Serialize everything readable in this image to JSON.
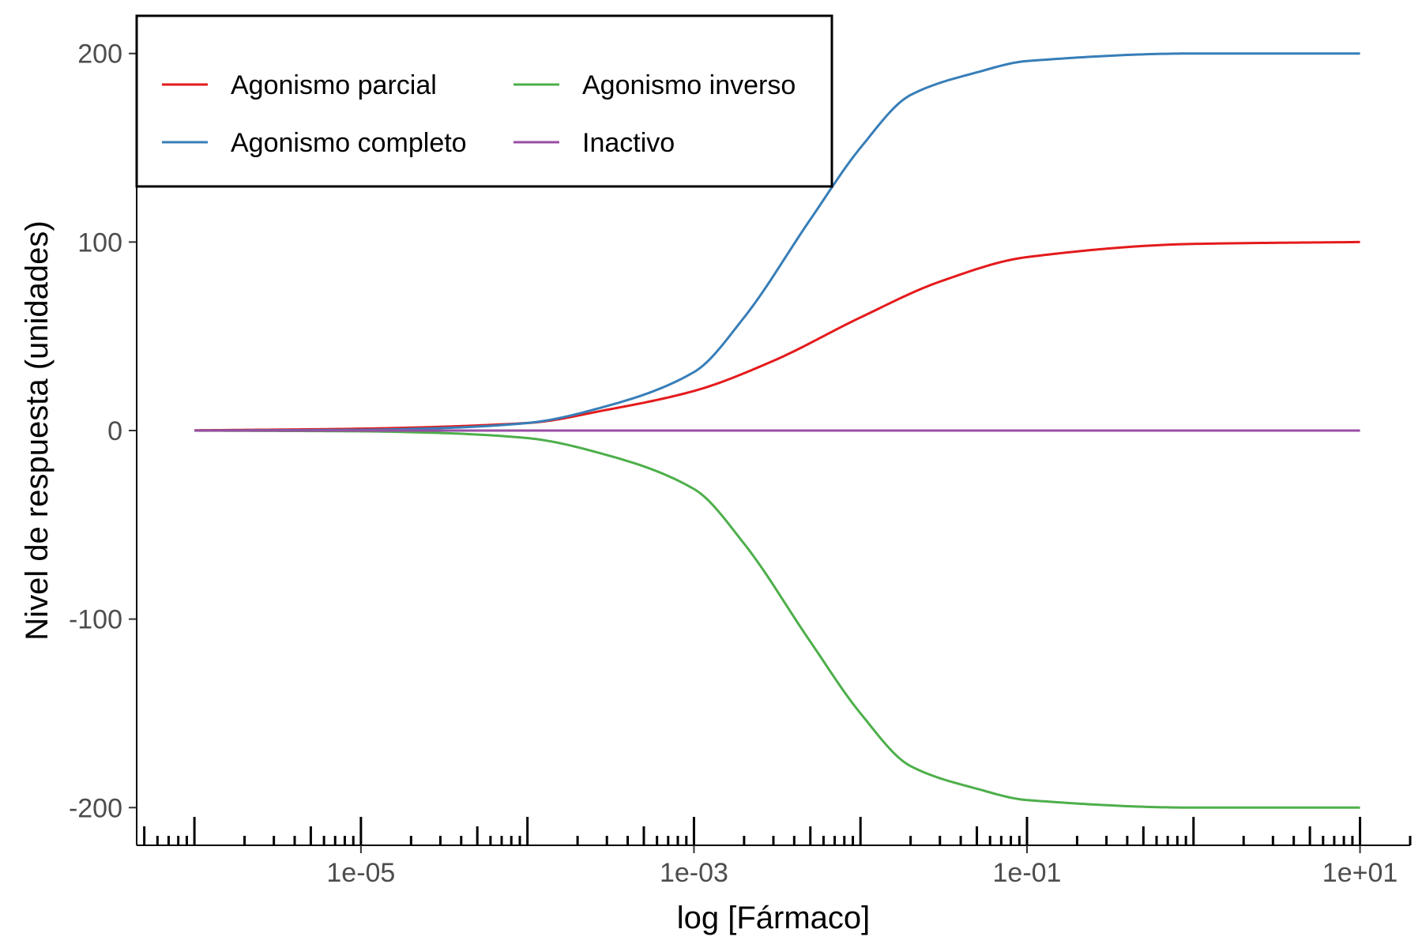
{
  "chart_data": {
    "type": "line",
    "xlabel": "log [Fármaco]",
    "ylabel": "Nivel de respuesta (unidades)",
    "x_scale": "log10",
    "xlim": [
      4.5e-07,
      20
    ],
    "ylim": [
      -220,
      220
    ],
    "x_ticks": [
      {
        "value": 1e-05,
        "label": "1e-05"
      },
      {
        "value": 0.001,
        "label": "1e-03"
      },
      {
        "value": 0.1,
        "label": "1e-01"
      },
      {
        "value": 10,
        "label": "1e+01"
      }
    ],
    "y_ticks": [
      {
        "value": 200,
        "label": "200"
      },
      {
        "value": 100,
        "label": "100"
      },
      {
        "value": 0,
        "label": "0"
      },
      {
        "value": -100,
        "label": "-100"
      },
      {
        "value": -200,
        "label": "-200"
      }
    ],
    "grid": false,
    "rug_ticks": true,
    "legend": {
      "position": "top-left",
      "columns": 2,
      "boxed": true
    },
    "series": [
      {
        "name": "Agonismo parcial",
        "color": "#E41A1C",
        "x": [
          1e-06,
          1e-05,
          0.0001,
          0.0003,
          0.001,
          0.003,
          0.01,
          0.03,
          0.1,
          1,
          10
        ],
        "y": [
          0.1,
          1,
          4,
          11,
          21,
          37,
          60,
          79,
          92,
          99,
          100
        ]
      },
      {
        "name": "Agonismo completo",
        "color": "#377EB8",
        "x": [
          1e-06,
          1e-05,
          3e-05,
          0.0001,
          0.0003,
          0.001,
          0.002,
          0.005,
          0.01,
          0.02,
          0.05,
          0.1,
          1,
          10
        ],
        "y": [
          0.02,
          0.4,
          1.3,
          4,
          13,
          31,
          60,
          112,
          150,
          178,
          190,
          196,
          200,
          200
        ]
      },
      {
        "name": "Agonismo inverso",
        "color": "#4DAF4A",
        "x": [
          1e-06,
          1e-05,
          3e-05,
          0.0001,
          0.0003,
          0.001,
          0.002,
          0.005,
          0.01,
          0.02,
          0.05,
          0.1,
          1,
          10
        ],
        "y": [
          -0.02,
          -0.4,
          -1.3,
          -4,
          -13,
          -31,
          -60,
          -112,
          -150,
          -178,
          -190,
          -196,
          -200,
          -200
        ]
      },
      {
        "name": "Inactivo",
        "color": "#984EA3",
        "x": [
          1e-06,
          10
        ],
        "y": [
          0,
          0
        ]
      }
    ]
  }
}
